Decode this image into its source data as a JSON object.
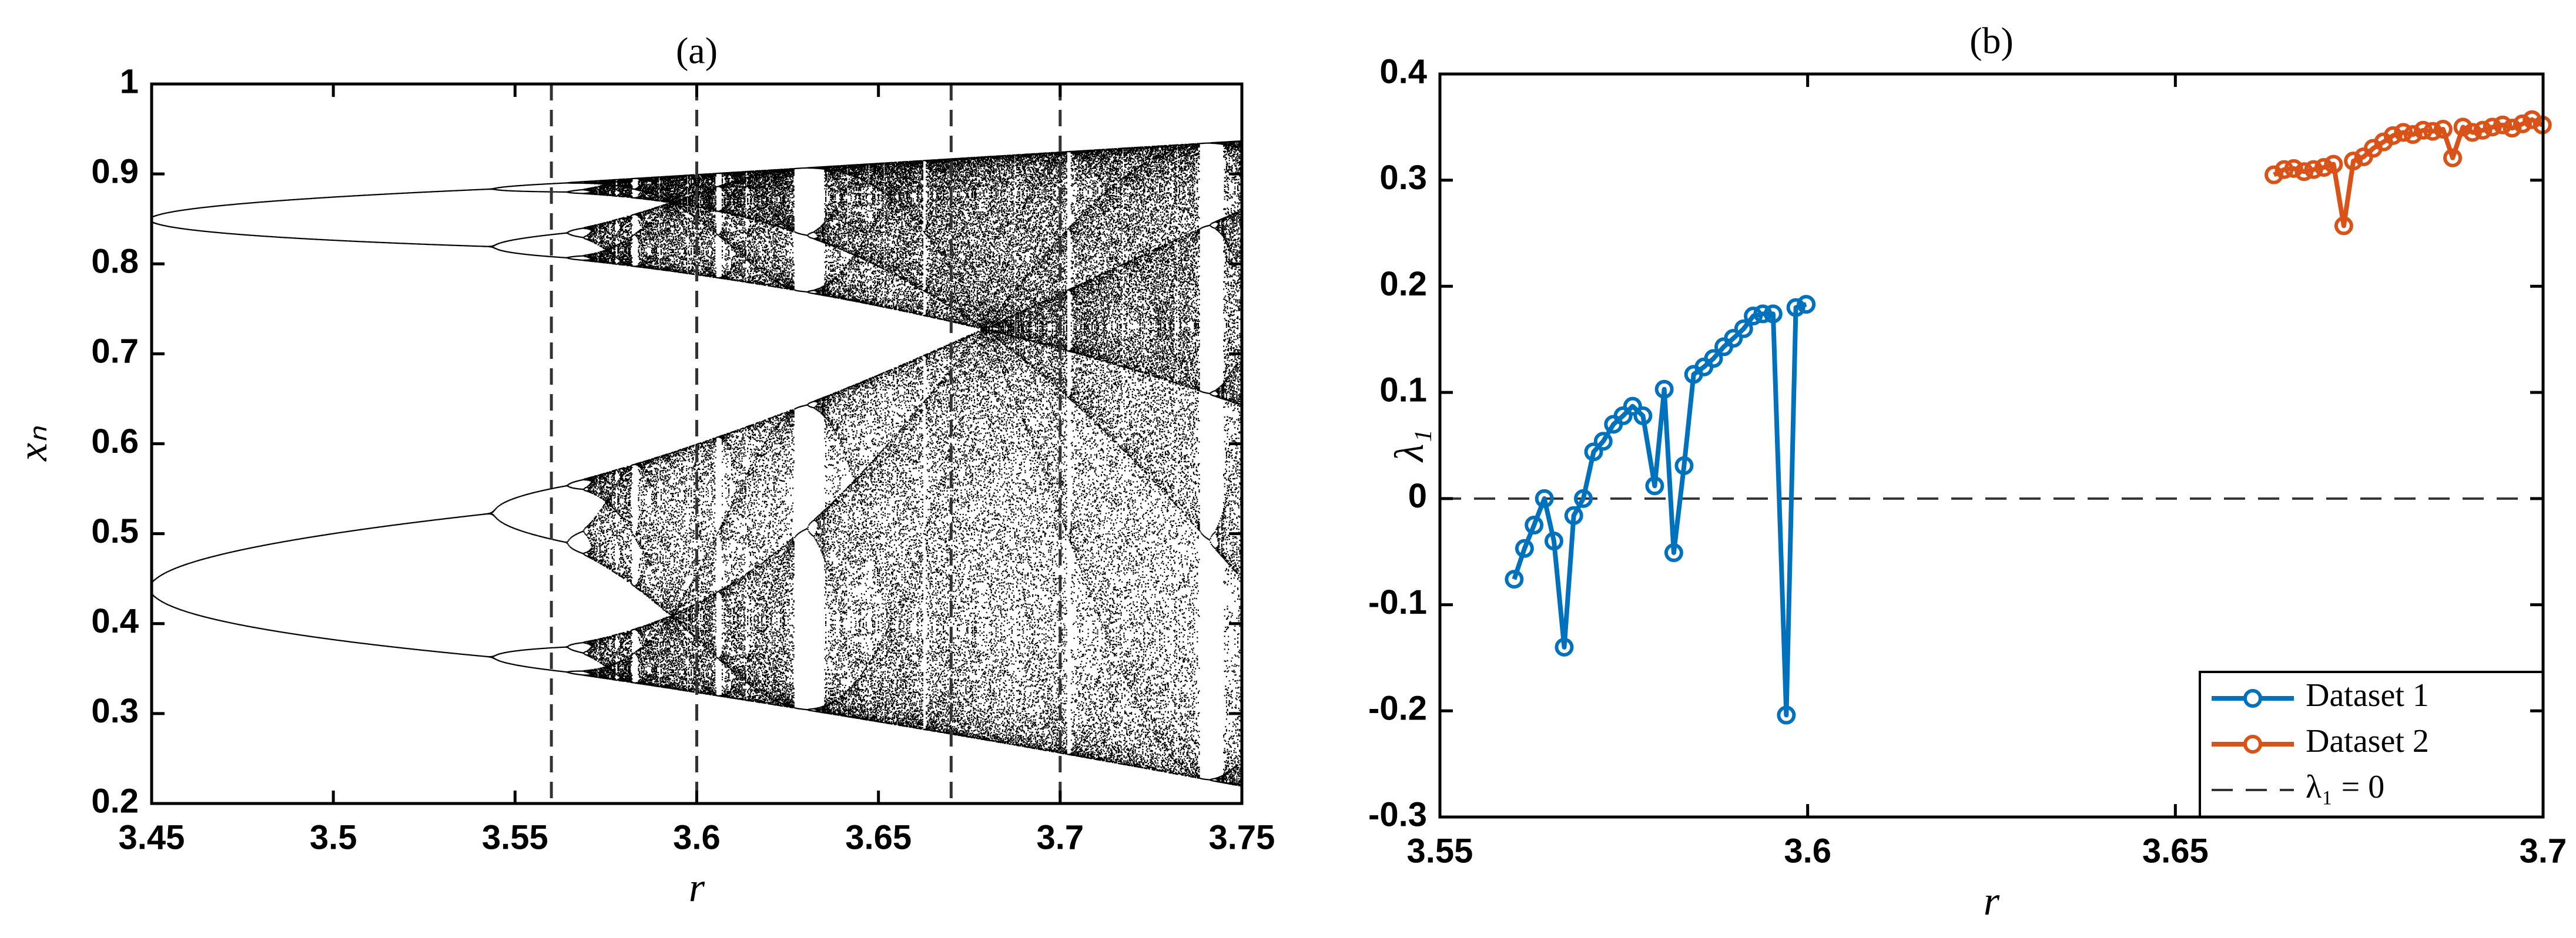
{
  "chart_data": [
    {
      "type": "bifurcation",
      "title": "(a)",
      "xlabel": "r",
      "ylabel": "xₙ",
      "xlim": [
        3.45,
        3.75
      ],
      "xticks": [
        3.45,
        3.5,
        3.55,
        3.6,
        3.65,
        3.7,
        3.75
      ],
      "ylim": [
        0.2,
        1
      ],
      "yticks": [
        0.2,
        0.3,
        0.4,
        0.5,
        0.6,
        0.7,
        0.8,
        0.9,
        1
      ],
      "color": "#000000",
      "vlines": [
        3.56,
        3.6,
        3.67,
        3.7
      ]
    },
    {
      "type": "line",
      "title": "(b)",
      "xlabel": "r",
      "ylabel": "λ₁",
      "xlim": [
        3.55,
        3.7
      ],
      "xticks": [
        3.55,
        3.6,
        3.65,
        3.7
      ],
      "ylim": [
        -0.3,
        0.4
      ],
      "yticks": [
        -0.3,
        -0.2,
        -0.1,
        0,
        0.1,
        0.2,
        0.3,
        0.4
      ],
      "legend": "lower right",
      "series": [
        {
          "name": "Dataset 1",
          "color": "#0072BD",
          "x": [
            3.5601,
            3.5615,
            3.5628,
            3.5642,
            3.5655,
            3.5669,
            3.5682,
            3.5695,
            3.5709,
            3.5722,
            3.5736,
            3.5749,
            3.5762,
            3.5776,
            3.5792,
            3.5805,
            3.5818,
            3.5832,
            3.5845,
            3.5859,
            3.5872,
            3.5886,
            3.5899,
            3.5913,
            3.5926,
            3.5939,
            3.5953,
            3.5971,
            3.5984,
            3.5998
          ],
          "values": [
            -0.076,
            -0.047,
            -0.025,
            0,
            -0.04,
            -0.14,
            -0.016,
            0,
            0.044,
            0.054,
            0.07,
            0.078,
            0.087,
            0.078,
            0.012,
            0.103,
            -0.051,
            0.031,
            0.117,
            0.124,
            0.132,
            0.143,
            0.151,
            0.16,
            0.172,
            0.174,
            0.174,
            -0.204,
            0.18,
            0.183
          ]
        },
        {
          "name": "Dataset 2",
          "color": "#D95319",
          "x": [
            3.6634,
            3.6648,
            3.6661,
            3.6675,
            3.6688,
            3.6702,
            3.6715,
            3.6729,
            3.6742,
            3.6756,
            3.6769,
            3.6783,
            3.6796,
            3.681,
            3.6823,
            3.6837,
            3.685,
            3.6864,
            3.6877,
            3.6891,
            3.6904,
            3.6918,
            3.6931,
            3.6945,
            3.6958,
            3.6972,
            3.6985,
            3.6999
          ],
          "values": [
            0.305,
            0.31,
            0.311,
            0.308,
            0.31,
            0.312,
            0.315,
            0.257,
            0.318,
            0.322,
            0.33,
            0.336,
            0.342,
            0.345,
            0.343,
            0.347,
            0.346,
            0.348,
            0.321,
            0.35,
            0.345,
            0.347,
            0.35,
            0.352,
            0.349,
            0.353,
            0.357,
            0.352
          ]
        }
      ],
      "reference_line": {
        "name": "λ₁ = 0",
        "value": 0
      }
    }
  ]
}
